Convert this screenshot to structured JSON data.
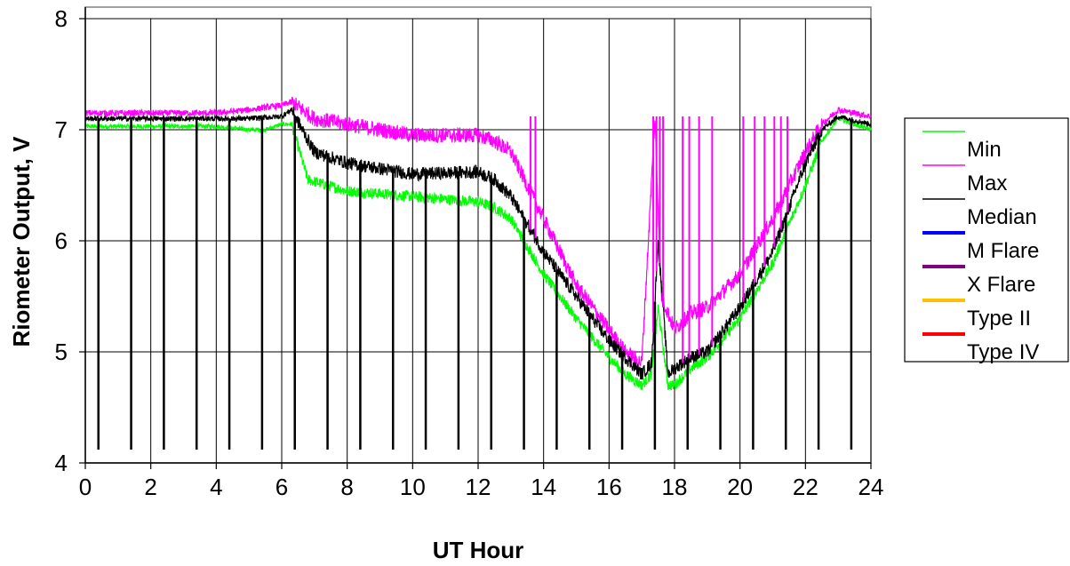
{
  "chart_data": {
    "type": "line",
    "xlabel": "UT Hour",
    "ylabel": "Riometer Output, V",
    "xlim": [
      0,
      24
    ],
    "ylim": [
      4,
      8
    ],
    "x_ticks": [
      "0",
      "2",
      "4",
      "6",
      "8",
      "10",
      "12",
      "14",
      "16",
      "18",
      "20",
      "22",
      "24"
    ],
    "y_ticks": [
      "4",
      "5",
      "6",
      "7",
      "8"
    ],
    "grid": true,
    "legend_position": "right",
    "series": [
      {
        "name": "Min",
        "color": "#00ff00",
        "x": [
          0,
          2,
          4,
          5,
          5.5,
          6,
          6.3,
          6.8,
          8,
          10,
          12,
          12.5,
          13,
          14,
          15,
          16,
          16.5,
          17,
          17.3,
          17.5,
          17.8,
          18,
          18.5,
          19,
          20,
          21,
          22,
          22.5,
          23,
          24
        ],
        "values": [
          7.03,
          7.03,
          7.03,
          7.0,
          7.0,
          7.05,
          7.05,
          6.55,
          6.45,
          6.4,
          6.35,
          6.3,
          6.2,
          5.7,
          5.3,
          4.95,
          4.8,
          4.7,
          4.8,
          5.4,
          4.7,
          4.7,
          4.85,
          4.95,
          5.3,
          5.8,
          6.5,
          6.9,
          7.1,
          7.0
        ]
      },
      {
        "name": "Max",
        "color": "#ff00ff",
        "x": [
          0,
          2,
          4,
          5,
          6,
          6.3,
          7,
          8,
          10,
          12,
          12.5,
          13,
          14,
          15,
          16,
          16.5,
          17,
          17.4,
          17.6,
          18,
          18.5,
          19,
          20,
          21,
          22,
          22.5,
          23,
          24
        ],
        "values": [
          7.15,
          7.15,
          7.15,
          7.18,
          7.22,
          7.25,
          7.1,
          7.05,
          6.95,
          6.95,
          6.9,
          6.8,
          6.2,
          5.6,
          5.2,
          5.0,
          4.9,
          7.1,
          5.5,
          5.2,
          5.35,
          5.4,
          5.7,
          6.2,
          6.8,
          7.05,
          7.18,
          7.12
        ]
      },
      {
        "name": "Median",
        "color": "#000000",
        "x": [
          0,
          2,
          4,
          5,
          6,
          6.3,
          7,
          8,
          10,
          12,
          12.5,
          13,
          14,
          15,
          16,
          16.5,
          17,
          17.3,
          17.5,
          17.8,
          18,
          18.5,
          19,
          20,
          21,
          22,
          22.5,
          23,
          24
        ],
        "values": [
          7.1,
          7.1,
          7.1,
          7.1,
          7.12,
          7.18,
          6.8,
          6.7,
          6.6,
          6.62,
          6.55,
          6.4,
          5.9,
          5.5,
          5.1,
          4.95,
          4.8,
          4.9,
          6.0,
          4.8,
          4.85,
          4.95,
          5.0,
          5.4,
          5.9,
          6.7,
          7.0,
          7.12,
          7.05
        ]
      },
      {
        "name": "M Flare",
        "color": "#0000ff",
        "x": [],
        "values": []
      },
      {
        "name": "X Flare",
        "color": "#800080",
        "x": [],
        "values": []
      },
      {
        "name": "Type II",
        "color": "#ffc000",
        "x": [],
        "values": []
      },
      {
        "name": "Type IV",
        "color": "#ff0000",
        "x": [],
        "values": []
      }
    ],
    "dropouts": {
      "value": 4.12,
      "x": [
        0.4,
        1.4,
        2.4,
        3.4,
        4.4,
        5.4,
        6.4,
        7.4,
        8.4,
        9.4,
        10.4,
        11.4,
        12.4,
        13.4,
        14.4,
        15.4,
        16.4,
        17.4,
        18.4,
        19.4,
        20.4,
        21.4,
        22.4,
        23.4
      ]
    },
    "spikes": {
      "x": [
        13.6,
        13.75,
        17.35,
        17.45,
        17.55,
        17.65,
        18.25,
        18.45,
        18.75,
        19.15,
        20.1,
        20.45,
        20.75,
        21.05,
        21.25,
        21.45
      ],
      "top": 7.12
    }
  }
}
